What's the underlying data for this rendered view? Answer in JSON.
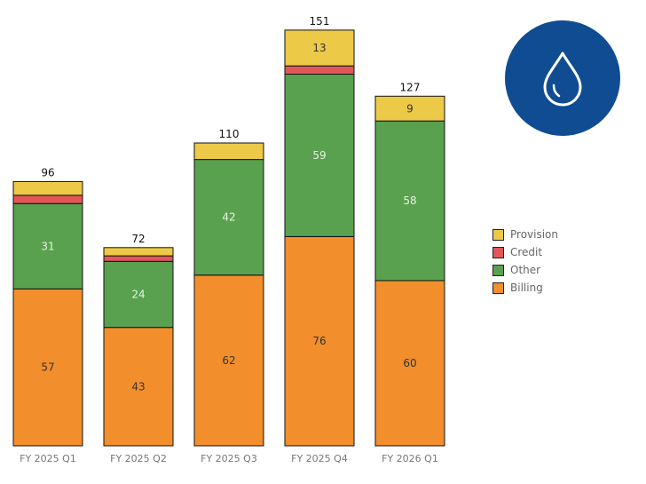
{
  "chart_data": {
    "type": "bar",
    "stacked": true,
    "title": "",
    "xlabel": "",
    "ylabel": "",
    "ylim": [
      0,
      160
    ],
    "grid": false,
    "legend_position": "right",
    "categories": [
      "FY 2025 Q1",
      "FY 2025 Q2",
      "FY 2025 Q3",
      "FY 2025 Q4",
      "FY 2026 Q1"
    ],
    "series": [
      {
        "name": "Billing",
        "color": "#f28e2b",
        "label_color": "#333333",
        "values": [
          57,
          43,
          62,
          76,
          60
        ]
      },
      {
        "name": "Other",
        "color": "#59a14f",
        "label_color": "#e6f2e0",
        "values": [
          31,
          24,
          42,
          59,
          58
        ]
      },
      {
        "name": "Credit",
        "color": "#e15759",
        "label_color": "#333333",
        "values": [
          3,
          2,
          0,
          3,
          0
        ]
      },
      {
        "name": "Provision",
        "color": "#edc948",
        "label_color": "#333333",
        "values": [
          5,
          3,
          6,
          13,
          9
        ]
      }
    ],
    "totals": [
      96,
      72,
      110,
      151,
      127
    ],
    "legend_order": [
      "Provision",
      "Credit",
      "Other",
      "Billing"
    ]
  },
  "icon": {
    "name": "water-drop-icon",
    "color": "#0f4c92"
  }
}
